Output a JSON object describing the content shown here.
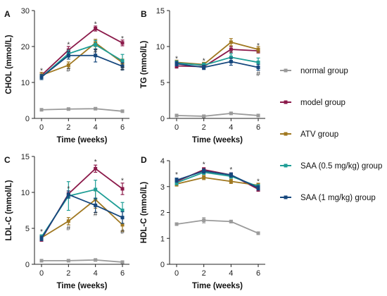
{
  "legend": {
    "entries": [
      {
        "name": "normal group",
        "color": "#9a9a9a"
      },
      {
        "name": "model group",
        "color": "#8b1a4a"
      },
      {
        "name": "ATV group",
        "color": "#a07820"
      },
      {
        "name": "SAA (0.5 mg/kg) group",
        "color": "#1f9e96"
      },
      {
        "name": "SAA (1 mg/kg) group",
        "color": "#16477d"
      }
    ]
  },
  "chart_data": [
    {
      "type": "line",
      "panel_label": "A",
      "xlabel": "Time (weeks)",
      "ylabel": "CHOL (mmol/L)",
      "x": [
        0,
        2,
        4,
        6
      ],
      "xticks": [
        "0",
        "2",
        "4",
        "6"
      ],
      "ylim": [
        0,
        30
      ],
      "yticks": [
        "0",
        "10",
        "20",
        "30"
      ],
      "series": [
        {
          "name": "normal group",
          "values": [
            2.4,
            2.6,
            2.7,
            2.0
          ],
          "err": [
            0.3,
            0.3,
            0.3,
            0.3
          ]
        },
        {
          "name": "model group",
          "values": [
            12.0,
            19.0,
            25.0,
            21.0
          ],
          "err": [
            0.8,
            1.0,
            0.7,
            0.8
          ]
        },
        {
          "name": "ATV group",
          "values": [
            12.0,
            14.8,
            21.0,
            15.5
          ],
          "err": [
            0.8,
            0.9,
            1.0,
            1.0
          ]
        },
        {
          "name": "SAA (0.5 mg/kg) group",
          "values": [
            11.5,
            18.0,
            20.5,
            16.0
          ],
          "err": [
            0.7,
            1.0,
            1.2,
            1.8
          ]
        },
        {
          "name": "SAA (1 mg/kg) group",
          "values": [
            11.5,
            17.5,
            17.5,
            14.5
          ],
          "err": [
            0.7,
            1.0,
            1.8,
            1.0
          ]
        }
      ],
      "annotations": [
        {
          "text": "*",
          "x": 0,
          "y": 13.2
        },
        {
          "text": "*",
          "x": 2,
          "y": 20.5
        },
        {
          "text": "#",
          "x": 2,
          "y": 13.5
        },
        {
          "text": "*",
          "x": 4,
          "y": 26.2
        },
        {
          "text": "#",
          "x": 4,
          "y": 18.7
        },
        {
          "text": "*",
          "x": 6,
          "y": 22.2
        },
        {
          "text": "#",
          "x": 6,
          "y": 13.8
        }
      ]
    },
    {
      "type": "line",
      "panel_label": "B",
      "xlabel": "Time (weeks)",
      "ylabel": "TG (mmol/L)",
      "x": [
        0,
        2,
        4,
        6
      ],
      "xticks": [
        "0",
        "2",
        "4",
        "6"
      ],
      "ylim": [
        0,
        15
      ],
      "yticks": [
        "0",
        "5",
        "10",
        "15"
      ],
      "series": [
        {
          "name": "normal group",
          "values": [
            0.4,
            0.3,
            0.7,
            0.4
          ],
          "err": [
            0.15,
            0.15,
            0.15,
            0.15
          ]
        },
        {
          "name": "model group",
          "values": [
            7.3,
            7.2,
            9.6,
            9.4
          ],
          "err": [
            0.3,
            0.3,
            0.4,
            0.3
          ]
        },
        {
          "name": "ATV group",
          "values": [
            7.8,
            7.5,
            10.6,
            9.6
          ],
          "err": [
            0.3,
            0.3,
            0.5,
            0.4
          ]
        },
        {
          "name": "SAA (0.5 mg/kg) group",
          "values": [
            7.7,
            7.4,
            8.5,
            7.8
          ],
          "err": [
            0.3,
            0.3,
            0.5,
            0.6
          ]
        },
        {
          "name": "SAA (1 mg/kg) group",
          "values": [
            7.6,
            7.1,
            7.9,
            7.1
          ],
          "err": [
            0.3,
            0.3,
            0.5,
            0.4
          ]
        }
      ],
      "annotations": [
        {
          "text": "*",
          "x": 0,
          "y": 8.3
        },
        {
          "text": "*",
          "x": 2,
          "y": 8.0
        },
        {
          "text": "*",
          "x": 4,
          "y": 9.0
        },
        {
          "text": "*",
          "x": 6,
          "y": 10.1
        },
        {
          "text": "#",
          "x": 6,
          "y": 6.2
        }
      ]
    },
    {
      "type": "line",
      "panel_label": "C",
      "xlabel": "Time (weeks)",
      "ylabel": "LDL-C (mmol/L)",
      "x": [
        0,
        2,
        4,
        6
      ],
      "xticks": [
        "0",
        "2",
        "4",
        "6"
      ],
      "ylim": [
        0,
        15
      ],
      "yticks": [
        "0",
        "5",
        "10",
        "15"
      ],
      "series": [
        {
          "name": "normal group",
          "values": [
            0.5,
            0.5,
            0.6,
            0.3
          ],
          "err": [
            0.1,
            0.1,
            0.1,
            0.1
          ]
        },
        {
          "name": "model group",
          "values": [
            3.5,
            9.8,
            13.3,
            10.5
          ],
          "err": [
            0.3,
            0.4,
            0.5,
            0.8
          ]
        },
        {
          "name": "ATV group",
          "values": [
            3.7,
            6.0,
            9.0,
            5.5
          ],
          "err": [
            0.3,
            0.5,
            1.2,
            0.9
          ]
        },
        {
          "name": "SAA (0.5 mg/kg) group",
          "values": [
            3.8,
            9.5,
            10.4,
            7.5
          ],
          "err": [
            0.3,
            2.0,
            1.3,
            1.1
          ]
        },
        {
          "name": "SAA (1 mg/kg) group",
          "values": [
            3.6,
            9.7,
            8.2,
            6.5
          ],
          "err": [
            0.3,
            0.5,
            1.0,
            0.8
          ]
        }
      ],
      "annotations": [
        {
          "text": "*",
          "x": 0,
          "y": 4.5
        },
        {
          "text": "*",
          "x": 2,
          "y": 10.5
        },
        {
          "text": "#",
          "x": 2,
          "y": 5.0
        },
        {
          "text": "*",
          "x": 4,
          "y": 14.2
        },
        {
          "text": "#",
          "x": 4,
          "y": 7.0
        },
        {
          "text": "*",
          "x": 6,
          "y": 11.6
        },
        {
          "text": "#",
          "x": 6,
          "y": 4.5
        }
      ]
    },
    {
      "type": "line",
      "panel_label": "D",
      "xlabel": "Time (weeks)",
      "ylabel": "HDL-C (mmol/L)",
      "x": [
        0,
        2,
        4,
        6
      ],
      "xticks": [
        "0",
        "2",
        "4",
        "6"
      ],
      "ylim": [
        0,
        4
      ],
      "yticks": [
        "0",
        "1",
        "2",
        "3",
        "4"
      ],
      "series": [
        {
          "name": "normal group",
          "values": [
            1.55,
            1.7,
            1.65,
            1.2
          ],
          "err": [
            0.05,
            0.1,
            0.05,
            0.05
          ]
        },
        {
          "name": "model group",
          "values": [
            3.2,
            3.65,
            3.45,
            2.9
          ],
          "err": [
            0.08,
            0.08,
            0.08,
            0.08
          ]
        },
        {
          "name": "ATV group",
          "values": [
            3.1,
            3.35,
            3.2,
            3.05
          ],
          "err": [
            0.08,
            0.08,
            0.08,
            0.08
          ]
        },
        {
          "name": "SAA (0.5 mg/kg) group",
          "values": [
            3.15,
            3.55,
            3.4,
            3.0
          ],
          "err": [
            0.08,
            0.08,
            0.08,
            0.08
          ]
        },
        {
          "name": "SAA (1 mg/kg) group",
          "values": [
            3.25,
            3.6,
            3.45,
            2.95
          ],
          "err": [
            0.08,
            0.08,
            0.08,
            0.08
          ]
        }
      ],
      "annotations": [
        {
          "text": "*",
          "x": 0,
          "y": 3.45
        },
        {
          "text": "*",
          "x": 2,
          "y": 3.85
        },
        {
          "text": "*",
          "x": 4,
          "y": 3.65
        },
        {
          "text": "*",
          "x": 6,
          "y": 3.2
        }
      ]
    }
  ]
}
